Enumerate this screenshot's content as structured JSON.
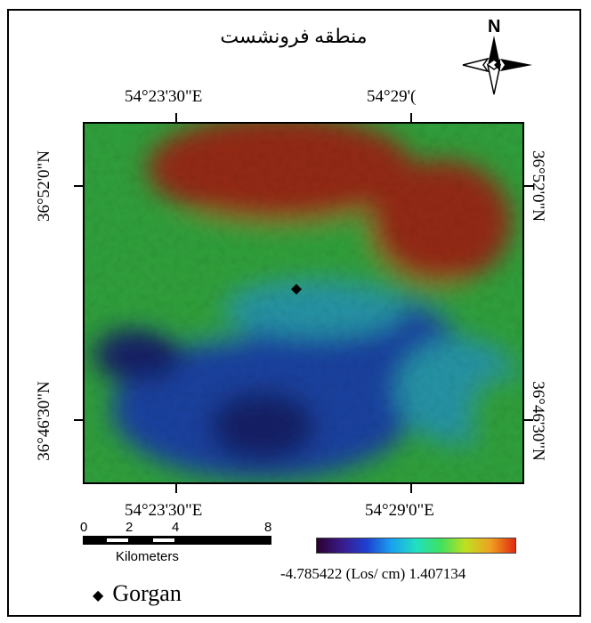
{
  "title": "منطقه فرونشست",
  "north_arrow": {
    "label": "N",
    "icon": "north-arrow-compass-icon"
  },
  "longitude_labels": {
    "top_left": "54°23'30\"E",
    "top_right": "54°29'(",
    "bottom_left": "54°23'30\"E",
    "bottom_right": "54°29'0\"E"
  },
  "latitude_labels": {
    "left_upper": "36°52'0\"N",
    "left_lower": "36°46'30\"N",
    "right_upper": "36°52'0\"N",
    "right_lower": "36°46'30\"N"
  },
  "scale_bar": {
    "ticks": [
      "0",
      "2",
      "4",
      "8"
    ],
    "unit": "Kilometers"
  },
  "color_legend": {
    "min": "-4.785422",
    "unit": "(Los/ cm)",
    "max": "1.407134",
    "colors": [
      "#2a0030",
      "#3a1a8a",
      "#1f3fd0",
      "#1aa0f0",
      "#20e0c0",
      "#40e060",
      "#c0e020",
      "#f0a020",
      "#e02a10"
    ]
  },
  "point_legend": {
    "marker": "◆",
    "label": "Gorgan"
  },
  "map_colors": {
    "red": "#c8381e",
    "green": "#40d850",
    "blue": "#2058d8",
    "darkblue": "#1a2a8a",
    "cyan": "#30c8e0"
  }
}
